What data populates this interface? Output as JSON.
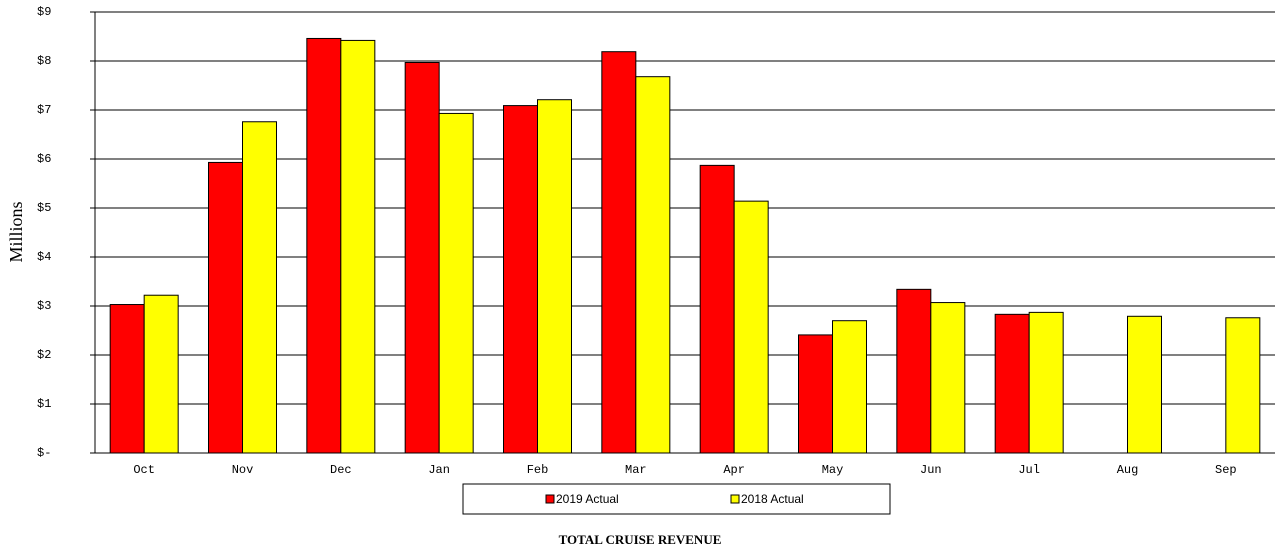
{
  "chart_data": {
    "type": "bar",
    "title": "TOTAL CRUISE REVENUE",
    "y_label": "Millions",
    "categories": [
      "Oct",
      "Nov",
      "Dec",
      "Jan",
      "Feb",
      "Mar",
      "Apr",
      "May",
      "Jun",
      "Jul",
      "Aug",
      "Sep"
    ],
    "series": [
      {
        "name": "2019 Actual",
        "color": "#ff0000",
        "values": [
          3.03,
          5.93,
          8.46,
          7.97,
          7.09,
          8.19,
          5.87,
          2.41,
          3.34,
          2.83,
          null,
          null
        ]
      },
      {
        "name": "2018 Actual",
        "color": "#ffff00",
        "values": [
          3.22,
          6.76,
          8.42,
          6.93,
          7.21,
          7.68,
          5.14,
          2.7,
          3.07,
          2.87,
          2.79,
          2.76
        ]
      }
    ],
    "ylim": [
      0,
      9
    ],
    "yticks": [
      {
        "value": 0,
        "label": "$-"
      },
      {
        "value": 1,
        "label": "$1"
      },
      {
        "value": 2,
        "label": "$2"
      },
      {
        "value": 3,
        "label": "$3"
      },
      {
        "value": 4,
        "label": "$4"
      },
      {
        "value": 5,
        "label": "$5"
      },
      {
        "value": 6,
        "label": "$6"
      },
      {
        "value": 7,
        "label": "$7"
      },
      {
        "value": 8,
        "label": "$8"
      },
      {
        "value": 9,
        "label": "$9"
      }
    ],
    "grid": true
  }
}
